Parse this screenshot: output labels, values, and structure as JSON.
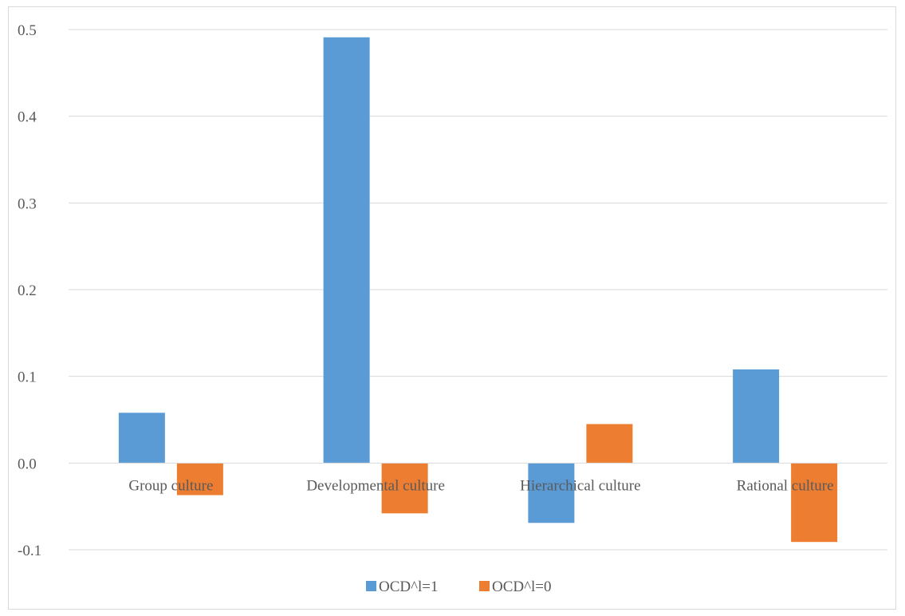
{
  "chart_data": {
    "type": "bar",
    "categories": [
      "Group culture",
      "Developmental culture",
      "Hierarchical culture",
      "Rational culture"
    ],
    "series": [
      {
        "name": "OCD^l=1",
        "color": "#5b9bd5",
        "values": [
          0.058,
          0.491,
          -0.069,
          0.108
        ]
      },
      {
        "name": "OCD^l=0",
        "color": "#ed7d31",
        "values": [
          -0.037,
          -0.058,
          0.045,
          -0.091
        ]
      }
    ],
    "y_ticks": [
      "-0.1",
      "0.0",
      "0.1",
      "0.2",
      "0.3",
      "0.4",
      "0.5"
    ],
    "ylim": [
      -0.1,
      0.5
    ],
    "grid": true,
    "legend_position": "bottom"
  }
}
